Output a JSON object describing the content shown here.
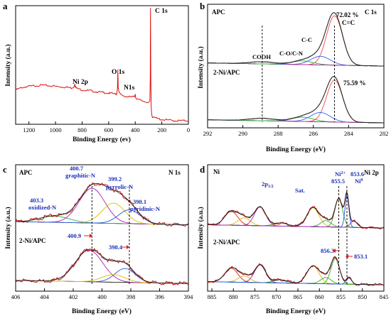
{
  "figure": {
    "panel_letters": [
      "a",
      "b",
      "c",
      "d"
    ]
  },
  "chart_data": [
    {
      "id": "a",
      "type": "line",
      "title": "",
      "xlabel": "Binding Energy (ev)",
      "ylabel": "Intensity (a.u.)",
      "xlim": [
        1300,
        0
      ],
      "ylim": [
        0,
        1
      ],
      "x_ticks": [
        1200,
        1000,
        800,
        600,
        400,
        200,
        0
      ],
      "series": [
        {
          "color": "#dd1111",
          "x": [
            1300,
            1250,
            1200,
            1150,
            1100,
            1050,
            1000,
            950,
            900,
            880,
            860,
            855,
            850,
            845,
            820,
            800,
            760,
            720,
            700,
            660,
            620,
            580,
            545,
            540,
            534,
            531,
            528,
            520,
            500,
            470,
            460,
            420,
            405,
            400,
            397,
            390,
            360,
            320,
            300,
            290,
            287,
            285,
            283,
            280,
            275,
            270,
            260,
            240,
            220,
            200,
            150,
            100,
            50,
            0
          ],
          "y": [
            0.29,
            0.31,
            0.32,
            0.325,
            0.33,
            0.325,
            0.32,
            0.315,
            0.31,
            0.305,
            0.32,
            0.345,
            0.32,
            0.305,
            0.295,
            0.29,
            0.285,
            0.28,
            0.275,
            0.27,
            0.265,
            0.26,
            0.255,
            0.26,
            0.3,
            0.47,
            0.3,
            0.26,
            0.245,
            0.235,
            0.232,
            0.23,
            0.235,
            0.26,
            0.23,
            0.215,
            0.2,
            0.19,
            0.185,
            0.19,
            0.4,
            0.98,
            0.4,
            0.15,
            0.08,
            0.06,
            0.055,
            0.05,
            0.045,
            0.04,
            0.035,
            0.03,
            0.03,
            0.03
          ]
        }
      ],
      "annotations": [
        {
          "text": "C 1s",
          "x": 285,
          "y": 1.0
        },
        {
          "text": "O 1s",
          "x": 531,
          "y": 0.53
        },
        {
          "text": "N1s",
          "x": 400,
          "y": 0.32
        },
        {
          "text": "Ni 2p",
          "x": 855,
          "y": 0.41
        }
      ]
    },
    {
      "id": "b",
      "type": "line",
      "title": "",
      "xlabel": "Binding Energy (eV)",
      "ylabel": "Intensity (a.u.)",
      "xlim": [
        292,
        282
      ],
      "ylim": [
        0,
        2
      ],
      "x_ticks": [
        292,
        290,
        288,
        286,
        284,
        282
      ],
      "spectra": [
        {
          "label": "APC",
          "offset": 1.0,
          "peaks": [
            {
              "name": "C=C",
              "center": 284.8,
              "height": 0.8,
              "sigma": 0.45,
              "color": "#ff4444"
            },
            {
              "name": "C-C",
              "center": 285.6,
              "height": 0.14,
              "sigma": 0.55,
              "color": "#3366ee"
            },
            {
              "name": "C-O/C-N",
              "center": 286.6,
              "height": 0.06,
              "sigma": 0.6,
              "color": "#33aa33"
            },
            {
              "name": "COOH",
              "center": 288.9,
              "height": 0.035,
              "sigma": 0.7,
              "color": "#aa33aa"
            }
          ],
          "percent_label": "72.02 %"
        },
        {
          "label": "2-Ni/APC",
          "offset": 0.08,
          "peaks": [
            {
              "name": "C=C",
              "center": 284.8,
              "height": 0.68,
              "sigma": 0.45,
              "color": "#ff4444"
            },
            {
              "name": "C-C",
              "center": 285.6,
              "height": 0.15,
              "sigma": 0.55,
              "color": "#3366ee"
            },
            {
              "name": "C-O/C-N",
              "center": 286.6,
              "height": 0.07,
              "sigma": 0.6,
              "color": "#33aa33"
            },
            {
              "name": "COOH",
              "center": 288.9,
              "height": 0.04,
              "sigma": 0.7,
              "color": "#aa33aa"
            }
          ],
          "percent_label": "75.59 %"
        }
      ],
      "corner_label": "C 1s",
      "peak_labels": [
        "COOH",
        "C-O/C-N",
        "C-C",
        "C=C"
      ],
      "vlines": [
        288.9,
        284.8
      ]
    },
    {
      "id": "c",
      "type": "line",
      "title": "",
      "xlabel": "Binding Energy (eV)",
      "ylabel": "Intensity (a.u.)",
      "xlim": [
        406,
        394
      ],
      "ylim": [
        0,
        2
      ],
      "x_ticks": [
        406,
        404,
        402,
        400,
        398,
        396,
        394
      ],
      "spectra": [
        {
          "label": "APC",
          "offset": 1.05,
          "peaks": [
            {
              "name": "oxidized-N",
              "center": 403.3,
              "height": 0.1,
              "sigma": 1.0,
              "color": "#33aa33"
            },
            {
              "name": "graphitic-N",
              "center": 400.7,
              "height": 0.55,
              "sigma": 0.9,
              "color": "#aa22aa"
            },
            {
              "name": "pyrrolic-N",
              "center": 399.2,
              "height": 0.32,
              "sigma": 0.8,
              "color": "#ddbb00"
            },
            {
              "name": "pyridinic-N",
              "center": 398.1,
              "height": 0.22,
              "sigma": 0.75,
              "color": "#2255ee"
            }
          ]
        },
        {
          "label": "2-Ni/APC",
          "offset": 0.12,
          "peaks": [
            {
              "name": "peak-400.9",
              "center": 400.9,
              "height": 0.5,
              "sigma": 0.95,
              "color": "#aa22aa"
            },
            {
              "name": "peak-398.4",
              "center": 398.4,
              "height": 0.22,
              "sigma": 0.7,
              "color": "#2255ee"
            },
            {
              "name": "peak-399.2",
              "center": 399.2,
              "height": 0.12,
              "sigma": 0.8,
              "color": "#ddbb00"
            }
          ]
        }
      ],
      "corner_label": "N 1s",
      "labels": [
        {
          "value": "403.3",
          "name": "oxidized-N"
        },
        {
          "value": "400.7",
          "name": "graphitic-N"
        },
        {
          "value": "399.2",
          "name": "pyrrolic-N"
        },
        {
          "value": "398.1",
          "name": "pyridinic-N"
        },
        {
          "value": "400.9",
          "name": ""
        },
        {
          "value": "398.4",
          "name": ""
        }
      ],
      "vlines": [
        400.7,
        398.1
      ]
    },
    {
      "id": "d",
      "type": "line",
      "title": "",
      "xlabel": "Binding Energy (eV)",
      "ylabel": "Intensity (a.u.)",
      "xlim": [
        886,
        845
      ],
      "ylim": [
        0,
        2
      ],
      "x_ticks": [
        885,
        880,
        875,
        870,
        865,
        860,
        855,
        850,
        845
      ],
      "spectra": [
        {
          "label": "Ni",
          "offset": 1.0,
          "peaks": [
            {
              "name": "peak-880.5",
              "center": 880.5,
              "height": 0.22,
              "sigma": 1.5,
              "color": "#dd2222"
            },
            {
              "name": "peak-877.5",
              "center": 877.5,
              "height": 0.12,
              "sigma": 1.4,
              "color": "#ddbb00"
            },
            {
              "name": "peak-873.8",
              "center": 873.8,
              "height": 0.3,
              "sigma": 1.3,
              "color": "#aa22aa"
            },
            {
              "name": "peak-869",
              "center": 869.0,
              "height": 0.05,
              "sigma": 1.6,
              "color": "#33aa33"
            },
            {
              "name": "peak-861.5",
              "center": 861.5,
              "height": 0.3,
              "sigma": 1.4,
              "color": "#ddbb00"
            },
            {
              "name": "peak-858.5",
              "center": 858.5,
              "height": 0.1,
              "sigma": 1.2,
              "color": "#33aa33"
            },
            {
              "name": "peak-855.5",
              "center": 855.5,
              "height": 0.45,
              "sigma": 0.9,
              "color": "#33aa33"
            },
            {
              "name": "peak-853.6",
              "center": 853.6,
              "height": 0.5,
              "sigma": 0.45,
              "color": "#2255ee"
            },
            {
              "name": "peak-852",
              "center": 852.0,
              "height": 0.1,
              "sigma": 0.8,
              "color": "#aa22aa"
            }
          ]
        },
        {
          "label": "2-Ni/APC",
          "offset": 0.1,
          "peaks": [
            {
              "name": "peak-880.5",
              "center": 880.5,
              "height": 0.22,
              "sigma": 1.5,
              "color": "#dd2222"
            },
            {
              "name": "peak-877.5",
              "center": 877.5,
              "height": 0.1,
              "sigma": 1.4,
              "color": "#ddbb00"
            },
            {
              "name": "peak-873.8",
              "center": 873.8,
              "height": 0.28,
              "sigma": 1.3,
              "color": "#aa22aa"
            },
            {
              "name": "peak-869",
              "center": 869.0,
              "height": 0.05,
              "sigma": 1.6,
              "color": "#33aa33"
            },
            {
              "name": "peak-861.5",
              "center": 861.5,
              "height": 0.28,
              "sigma": 1.4,
              "color": "#ddbb00"
            },
            {
              "name": "peak-858.5",
              "center": 858.5,
              "height": 0.1,
              "sigma": 1.2,
              "color": "#33aa33"
            },
            {
              "name": "peak-856.3",
              "center": 856.3,
              "height": 0.4,
              "sigma": 1.0,
              "color": "#33aa33"
            },
            {
              "name": "peak-853.1",
              "center": 853.1,
              "height": 0.1,
              "sigma": 0.6,
              "color": "#2255ee"
            }
          ]
        }
      ],
      "corner_label": "Ni 2p",
      "labels": [
        "2p1/2",
        "Sat.",
        "Ni2+",
        "855.5",
        "853.6",
        "Ni0",
        "856.3",
        "853.1"
      ],
      "vlines": [
        855.5,
        853.6
      ]
    }
  ]
}
